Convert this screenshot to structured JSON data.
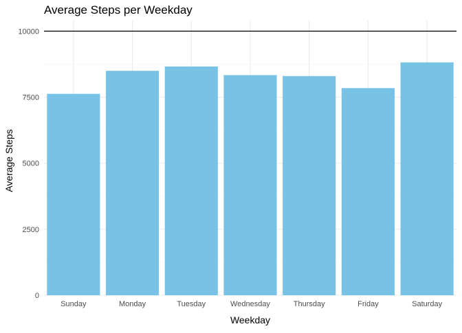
{
  "chart_data": {
    "type": "bar",
    "title": "Average Steps per Weekday",
    "xlabel": "Weekday",
    "ylabel": "Average Steps",
    "categories": [
      "Sunday",
      "Monday",
      "Tuesday",
      "Wednesday",
      "Thursday",
      "Friday",
      "Saturday"
    ],
    "values": [
      7627,
      8498,
      8662,
      8335,
      8300,
      7844,
      8818
    ],
    "ylim": [
      0,
      10400
    ],
    "yticks": [
      0,
      2500,
      5000,
      7500,
      10000
    ],
    "ytick_labels": [
      "0",
      "2500",
      "5000",
      "7500",
      "10000"
    ],
    "reference_line": 10000,
    "grid": true,
    "legend": "none",
    "colors": {
      "bar": "#77C2E5",
      "grid_major": "#EBEBEB",
      "grid_minor": "#F5F5F5",
      "reference_line": "#000000",
      "text": "#000000",
      "tick_text": "#4D4D4D"
    }
  }
}
